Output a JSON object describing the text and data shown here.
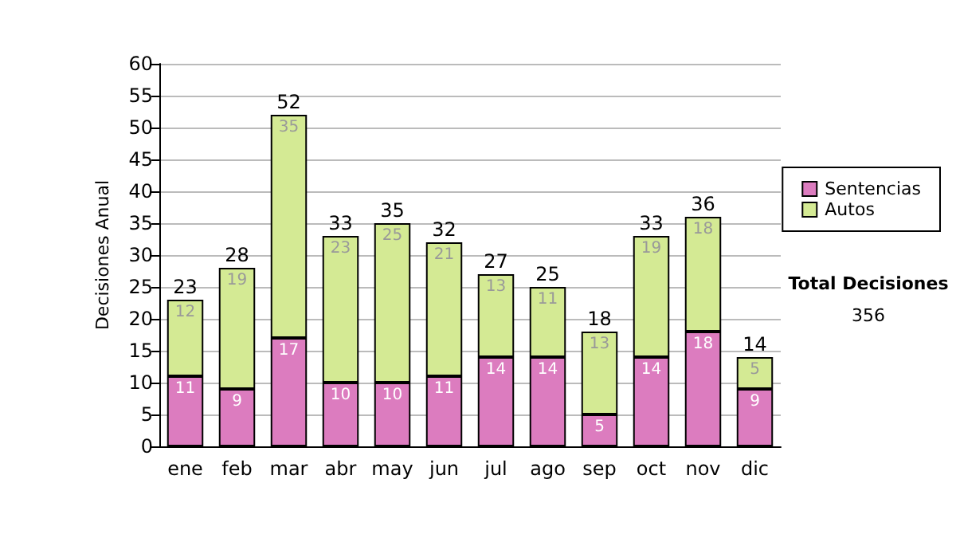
{
  "chart_data": {
    "type": "bar",
    "ylabel": "Decisiones Anual",
    "categories": [
      "ene",
      "feb",
      "mar",
      "abr",
      "may",
      "jun",
      "jul",
      "ago",
      "sep",
      "oct",
      "nov",
      "dic"
    ],
    "series": [
      {
        "name": "Sentencias",
        "color": "#dc7cbf",
        "values": [
          11,
          9,
          17,
          10,
          10,
          11,
          14,
          14,
          5,
          14,
          18,
          9
        ]
      },
      {
        "name": "Autos",
        "color": "#d4ea94",
        "values": [
          12,
          19,
          35,
          23,
          25,
          21,
          13,
          11,
          13,
          19,
          18,
          5
        ]
      }
    ],
    "stacked": true,
    "data_labels": true,
    "totals": [
      "23",
      "28",
      "52",
      "33",
      "35",
      "32",
      "27",
      "25",
      "18",
      "33",
      "36",
      "14"
    ],
    "ylim": [
      0,
      60
    ],
    "yticks": [
      0,
      5,
      10,
      15,
      20,
      25,
      30,
      35,
      40,
      45,
      50,
      55,
      60
    ],
    "grid": "y",
    "legend": "right",
    "annotations": [
      "Total Decisiones",
      "356"
    ]
  }
}
